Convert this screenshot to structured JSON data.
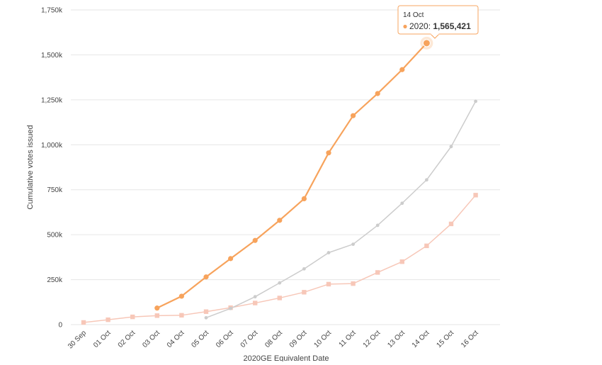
{
  "chart_data": {
    "type": "line",
    "title": "",
    "xlabel": "2020GE Equivalent Date",
    "ylabel": "Cumulative votes issued",
    "categories": [
      "30 Sep",
      "01 Oct",
      "02 Oct",
      "03 Oct",
      "04 Oct",
      "05 Oct",
      "06 Oct",
      "07 Oct",
      "08 Oct",
      "09 Oct",
      "10 Oct",
      "11 Oct",
      "12 Oct",
      "13 Oct",
      "14 Oct",
      "15 Oct",
      "16 Oct"
    ],
    "ylim": [
      0,
      1750000
    ],
    "yticks": [
      0,
      250000,
      500000,
      750000,
      1000000,
      1250000,
      1500000,
      1750000
    ],
    "ytick_labels": [
      "0",
      "250k",
      "500k",
      "750k",
      "1,000k",
      "1,250k",
      "1,500k",
      "1,750k"
    ],
    "grid": true,
    "series": [
      {
        "color": "#f7a35c",
        "marker": "circle",
        "values": [
          null,
          null,
          null,
          92000,
          158000,
          265000,
          367000,
          468000,
          580000,
          700000,
          955000,
          1162000,
          1285000,
          1418000,
          1565421,
          null,
          null
        ]
      },
      {
        "color": "#cccccc",
        "marker": "diamond",
        "values": [
          null,
          null,
          null,
          null,
          null,
          38000,
          90000,
          155000,
          232000,
          310000,
          400000,
          447000,
          552000,
          675000,
          805000,
          990000,
          1242000
        ]
      },
      {
        "color": "#f7c7b8",
        "marker": "square",
        "values": [
          12000,
          27000,
          43000,
          50000,
          52000,
          72000,
          94000,
          120000,
          148000,
          180000,
          225000,
          228000,
          290000,
          350000,
          438000,
          560000,
          720000
        ]
      }
    ],
    "tooltip": {
      "date": "14 Oct",
      "series_label": "2020",
      "value_label": "1,565,421",
      "color": "#f7a35c"
    }
  }
}
